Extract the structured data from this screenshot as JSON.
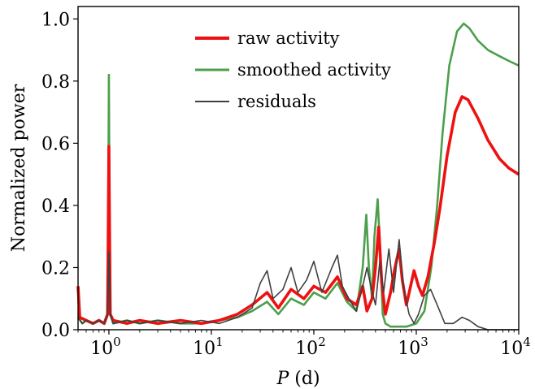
{
  "chart_data": {
    "type": "line",
    "xscale": "log",
    "xlabel_main": "P",
    "xlabel_unit": " (d)",
    "ylabel": "Normalized power",
    "xlim": [
      0.5,
      10000
    ],
    "ylim": [
      0,
      1.04
    ],
    "grid": false,
    "legend_position": "top-center",
    "x_ticks": [
      {
        "base": "10",
        "exp": "0",
        "value": 1
      },
      {
        "base": "10",
        "exp": "1",
        "value": 10
      },
      {
        "base": "10",
        "exp": "2",
        "value": 100
      },
      {
        "base": "10",
        "exp": "3",
        "value": 1000
      },
      {
        "base": "10",
        "exp": "4",
        "value": 10000
      }
    ],
    "y_ticks": [
      {
        "label": "0.0",
        "value": 0.0
      },
      {
        "label": "0.2",
        "value": 0.2
      },
      {
        "label": "0.4",
        "value": 0.4
      },
      {
        "label": "0.6",
        "value": 0.6
      },
      {
        "label": "0.8",
        "value": 0.8
      },
      {
        "label": "1.0",
        "value": 1.0
      }
    ],
    "series": [
      {
        "name": "smoothed activity",
        "color": "#4c9f4c",
        "stroke_width": 2.6,
        "points": [
          [
            0.5,
            0.04
          ],
          [
            0.55,
            0.02
          ],
          [
            0.6,
            0.03
          ],
          [
            0.7,
            0.02
          ],
          [
            0.8,
            0.03
          ],
          [
            0.9,
            0.02
          ],
          [
            0.97,
            0.05
          ],
          [
            0.99,
            0.5
          ],
          [
            1.0,
            0.82
          ],
          [
            1.01,
            0.5
          ],
          [
            1.03,
            0.05
          ],
          [
            1.1,
            0.02
          ],
          [
            1.5,
            0.03
          ],
          [
            2,
            0.02
          ],
          [
            3,
            0.03
          ],
          [
            5,
            0.02
          ],
          [
            8,
            0.02
          ],
          [
            12,
            0.03
          ],
          [
            18,
            0.04
          ],
          [
            25,
            0.06
          ],
          [
            35,
            0.09
          ],
          [
            45,
            0.05
          ],
          [
            60,
            0.1
          ],
          [
            80,
            0.08
          ],
          [
            100,
            0.12
          ],
          [
            130,
            0.1
          ],
          [
            170,
            0.15
          ],
          [
            210,
            0.09
          ],
          [
            260,
            0.06
          ],
          [
            300,
            0.2
          ],
          [
            325,
            0.37
          ],
          [
            345,
            0.2
          ],
          [
            370,
            0.1
          ],
          [
            390,
            0.3
          ],
          [
            420,
            0.42
          ],
          [
            445,
            0.25
          ],
          [
            470,
            0.05
          ],
          [
            500,
            0.02
          ],
          [
            560,
            0.01
          ],
          [
            650,
            0.01
          ],
          [
            800,
            0.01
          ],
          [
            1000,
            0.02
          ],
          [
            1200,
            0.06
          ],
          [
            1400,
            0.2
          ],
          [
            1600,
            0.4
          ],
          [
            1800,
            0.63
          ],
          [
            2100,
            0.85
          ],
          [
            2500,
            0.96
          ],
          [
            2900,
            0.985
          ],
          [
            3300,
            0.97
          ],
          [
            4000,
            0.93
          ],
          [
            5000,
            0.9
          ],
          [
            6500,
            0.88
          ],
          [
            8000,
            0.865
          ],
          [
            10000,
            0.85
          ]
        ]
      },
      {
        "name": "raw activity",
        "color": "#ee1111",
        "stroke_width": 3.6,
        "points": [
          [
            0.5,
            0.14
          ],
          [
            0.52,
            0.04
          ],
          [
            0.6,
            0.03
          ],
          [
            0.7,
            0.02
          ],
          [
            0.8,
            0.03
          ],
          [
            0.9,
            0.02
          ],
          [
            0.97,
            0.05
          ],
          [
            0.99,
            0.4
          ],
          [
            1.0,
            0.59
          ],
          [
            1.01,
            0.4
          ],
          [
            1.03,
            0.05
          ],
          [
            1.1,
            0.03
          ],
          [
            1.5,
            0.02
          ],
          [
            2,
            0.03
          ],
          [
            3,
            0.02
          ],
          [
            5,
            0.03
          ],
          [
            8,
            0.02
          ],
          [
            12,
            0.03
          ],
          [
            18,
            0.05
          ],
          [
            25,
            0.08
          ],
          [
            35,
            0.12
          ],
          [
            45,
            0.07
          ],
          [
            60,
            0.13
          ],
          [
            80,
            0.1
          ],
          [
            100,
            0.14
          ],
          [
            130,
            0.12
          ],
          [
            170,
            0.17
          ],
          [
            210,
            0.1
          ],
          [
            260,
            0.08
          ],
          [
            300,
            0.14
          ],
          [
            330,
            0.06
          ],
          [
            370,
            0.1
          ],
          [
            400,
            0.2
          ],
          [
            430,
            0.33
          ],
          [
            460,
            0.15
          ],
          [
            500,
            0.05
          ],
          [
            560,
            0.12
          ],
          [
            620,
            0.2
          ],
          [
            680,
            0.26
          ],
          [
            730,
            0.16
          ],
          [
            800,
            0.08
          ],
          [
            880,
            0.14
          ],
          [
            950,
            0.19
          ],
          [
            1050,
            0.14
          ],
          [
            1150,
            0.11
          ],
          [
            1300,
            0.17
          ],
          [
            1500,
            0.28
          ],
          [
            1700,
            0.39
          ],
          [
            2000,
            0.56
          ],
          [
            2400,
            0.7
          ],
          [
            2800,
            0.75
          ],
          [
            3200,
            0.74
          ],
          [
            4000,
            0.68
          ],
          [
            5000,
            0.61
          ],
          [
            6500,
            0.55
          ],
          [
            8000,
            0.52
          ],
          [
            10000,
            0.5
          ]
        ]
      },
      {
        "name": "residuals",
        "color": "#404040",
        "stroke_width": 1.6,
        "points": [
          [
            0.5,
            0.04
          ],
          [
            0.55,
            0.02
          ],
          [
            0.6,
            0.03
          ],
          [
            0.7,
            0.02
          ],
          [
            0.8,
            0.03
          ],
          [
            0.9,
            0.02
          ],
          [
            0.97,
            0.05
          ],
          [
            0.99,
            0.18
          ],
          [
            1.0,
            0.25
          ],
          [
            1.01,
            0.18
          ],
          [
            1.03,
            0.05
          ],
          [
            1.1,
            0.02
          ],
          [
            1.5,
            0.03
          ],
          [
            2,
            0.02
          ],
          [
            3,
            0.03
          ],
          [
            5,
            0.02
          ],
          [
            8,
            0.03
          ],
          [
            12,
            0.02
          ],
          [
            18,
            0.04
          ],
          [
            25,
            0.07
          ],
          [
            30,
            0.15
          ],
          [
            35,
            0.19
          ],
          [
            40,
            0.1
          ],
          [
            50,
            0.13
          ],
          [
            60,
            0.2
          ],
          [
            70,
            0.12
          ],
          [
            85,
            0.16
          ],
          [
            100,
            0.22
          ],
          [
            120,
            0.12
          ],
          [
            150,
            0.2
          ],
          [
            170,
            0.24
          ],
          [
            190,
            0.14
          ],
          [
            220,
            0.1
          ],
          [
            260,
            0.06
          ],
          [
            300,
            0.14
          ],
          [
            330,
            0.2
          ],
          [
            360,
            0.14
          ],
          [
            400,
            0.08
          ],
          [
            440,
            0.22
          ],
          [
            480,
            0.12
          ],
          [
            540,
            0.26
          ],
          [
            600,
            0.12
          ],
          [
            680,
            0.29
          ],
          [
            750,
            0.14
          ],
          [
            850,
            0.05
          ],
          [
            950,
            0.02
          ],
          [
            1050,
            0.05
          ],
          [
            1200,
            0.11
          ],
          [
            1380,
            0.13
          ],
          [
            1600,
            0.08
          ],
          [
            1900,
            0.02
          ],
          [
            2300,
            0.02
          ],
          [
            2800,
            0.04
          ],
          [
            3300,
            0.03
          ],
          [
            4000,
            0.01
          ],
          [
            5000,
            0.0
          ],
          [
            7000,
            0.0
          ],
          [
            10000,
            0.0
          ]
        ]
      }
    ],
    "legend": [
      {
        "label": "raw activity",
        "color": "#ee1111",
        "width": 4
      },
      {
        "label": "smoothed activity",
        "color": "#4c9f4c",
        "width": 3
      },
      {
        "label": "residuals",
        "color": "#404040",
        "width": 2
      }
    ]
  }
}
